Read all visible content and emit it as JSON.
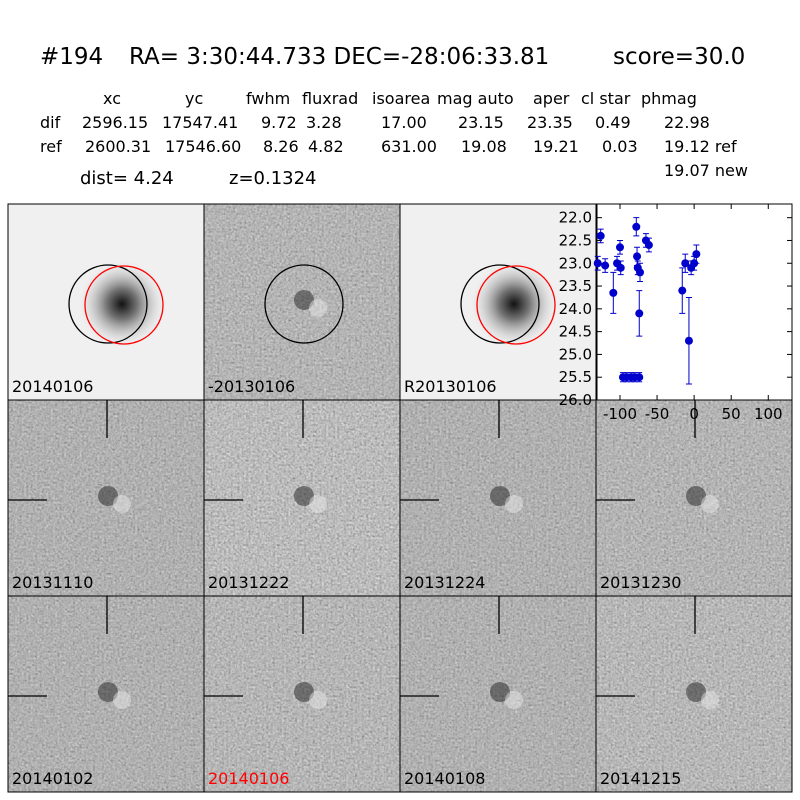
{
  "header": {
    "id": "#194",
    "coords": "RA= 3:30:44.733 DEC=-28:06:33.81",
    "score": "score=30.0"
  },
  "table": {
    "columns": [
      "xc",
      "yc",
      "fwhm",
      "fluxrad",
      "isoarea",
      "mag auto",
      "aper",
      "cl star",
      "phmag"
    ],
    "rows": [
      [
        "dif",
        "2596.15",
        "17547.41",
        "9.72",
        "3.28",
        "17.00",
        "23.15",
        "23.35",
        "0.49",
        "22.98"
      ],
      [
        "ref",
        "2600.31",
        "17546.60",
        "8.26",
        "4.82",
        "631.00",
        "19.08",
        "19.21",
        "0.03",
        "19.12 ref"
      ]
    ],
    "extra": "19.07 new"
  },
  "dist": "dist=  4.24",
  "z": "z=0.1324",
  "panels": [
    "20140106",
    "-20130106",
    "R20130106",
    "20131110",
    "20131222",
    "20131224",
    "20131230",
    "20140102",
    "20140106",
    "20140108",
    "20141215"
  ],
  "chart_data": {
    "type": "scatter",
    "x": [
      -130,
      -126,
      -120,
      -109,
      -104,
      -100,
      -99,
      -96,
      -91,
      -85,
      -80,
      -74,
      -78,
      -77,
      -76,
      -73,
      -74,
      -65,
      -61,
      -16,
      -12,
      -7,
      -4,
      0,
      3
    ],
    "y": [
      23.0,
      22.4,
      23.05,
      23.65,
      23.0,
      22.65,
      23.1,
      25.5,
      25.5,
      25.5,
      25.5,
      25.5,
      22.2,
      22.85,
      23.1,
      23.2,
      24.1,
      22.5,
      22.6,
      23.6,
      23.0,
      24.7,
      23.1,
      23.0,
      22.8
    ],
    "errors": [
      0.15,
      0.15,
      0.15,
      0.45,
      0.15,
      0.15,
      0.15,
      0.1,
      0.1,
      0.1,
      0.1,
      0.1,
      0.2,
      0.2,
      0.15,
      0.2,
      0.5,
      0.15,
      0.15,
      0.5,
      0.2,
      0.95,
      0.15,
      0.15,
      0.2
    ],
    "color": "#0000cc",
    "xlim": [
      -131,
      132
    ],
    "ylim": [
      21.7,
      26.0
    ],
    "y_inverted": true,
    "xticks": [
      -100,
      -50,
      0,
      50,
      100
    ],
    "yticks": [
      {
        "value": 22.0,
        "label": "22.0"
      },
      22.5,
      {
        "value": 23.0,
        "label": "23.0"
      },
      23.5,
      {
        "value": 24.0,
        "label": "24.0"
      },
      24.5,
      {
        "value": 25.0,
        "label": "25.0"
      },
      25.5,
      {
        "value": 26.0,
        "label": "26.0"
      }
    ]
  }
}
